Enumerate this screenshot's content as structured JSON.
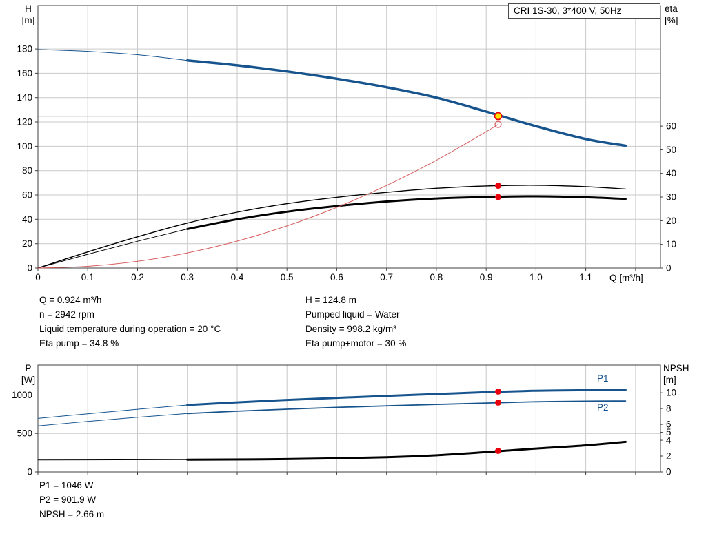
{
  "info": {
    "left": [
      "Q = 0.924 m³/h",
      "n = 2942 rpm",
      "Liquid temperature during operation = 20 °C",
      "Eta pump = 34.8 %"
    ],
    "right": [
      "H = 124.8 m",
      "Pumped liquid = Water",
      "Density = 998.2 kg/m³",
      "Eta pump+motor = 30 %"
    ]
  },
  "results": [
    "P1 = 1046 W",
    "P2 = 901.9 W",
    "NPSH = 2.66 m"
  ],
  "colors": {
    "curve_blue": "#17548e",
    "curve_black": "#000000",
    "curve_red": "#d65c5c",
    "dot_red": "#e8000d",
    "dot_yellow": "#ffe400",
    "grid": "#c9c9c9",
    "frame": "#3f3f3f",
    "crosshair": "#3a3a3a"
  },
  "chart_data": [
    {
      "type": "line",
      "title": "CRI 1S-30, 3*400 V, 50Hz",
      "x_label": "Q [m³/h]",
      "y_left_label": [
        "H",
        "[m]"
      ],
      "y_right_label": [
        "eta",
        "[%]"
      ],
      "xlim": [
        0,
        1.25
      ],
      "x_ticks": [
        0,
        0.1,
        0.2,
        0.3,
        0.4,
        0.5,
        0.6,
        0.7,
        0.8,
        0.9,
        1.0,
        1.1
      ],
      "x_grid": [
        0.1,
        0.2,
        0.3,
        0.4,
        0.5,
        0.6,
        0.7,
        0.8,
        0.9,
        1.0,
        1.1,
        1.2
      ],
      "show_x_labels": true,
      "y_left_ticks": [
        0,
        20,
        40,
        60,
        80,
        100,
        120,
        140,
        160,
        180
      ],
      "y_left_lim": [
        0,
        215.7
      ],
      "y_right_ticks": [
        0,
        10,
        20,
        30,
        40,
        50,
        60
      ],
      "y_right_lim": [
        0,
        111
      ],
      "duty_point": {
        "Q": 0.924,
        "H": 124.8,
        "eta_pump": 34.8,
        "eta_pump_motor": 30
      },
      "crosshair": [
        0.924,
        124.8
      ],
      "series": [
        {
          "name": "head-curve-extension",
          "axis": "left",
          "color": "curve_blue",
          "width": 1,
          "points": [
            [
              0,
              179.5
            ],
            [
              0.1,
              178
            ],
            [
              0.2,
              175.2
            ],
            [
              0.3,
              170.6
            ]
          ]
        },
        {
          "name": "head-curve",
          "axis": "left",
          "color": "curve_blue",
          "width": 3.5,
          "points": [
            [
              0.3,
              170.6
            ],
            [
              0.4,
              166.5
            ],
            [
              0.5,
              161.5
            ],
            [
              0.6,
              155.5
            ],
            [
              0.7,
              148.5
            ],
            [
              0.8,
              140
            ],
            [
              0.9,
              128.5
            ],
            [
              1.0,
              116.5
            ],
            [
              1.1,
              106
            ],
            [
              1.18,
              100.5
            ]
          ]
        },
        {
          "name": "eta-pump-curve",
          "axis": "right",
          "color": "curve_black",
          "width": 1.4,
          "points": [
            [
              0,
              0
            ],
            [
              0.1,
              6.8
            ],
            [
              0.2,
              13.2
            ],
            [
              0.3,
              19
            ],
            [
              0.4,
              23.6
            ],
            [
              0.5,
              27.2
            ],
            [
              0.6,
              29.9
            ],
            [
              0.7,
              32
            ],
            [
              0.8,
              33.7
            ],
            [
              0.9,
              34.7
            ],
            [
              1.0,
              35
            ],
            [
              1.1,
              34.4
            ],
            [
              1.18,
              33.4
            ]
          ]
        },
        {
          "name": "eta-pump-motor-extension",
          "axis": "right",
          "color": "curve_black",
          "width": 1,
          "points": [
            [
              0,
              0
            ],
            [
              0.1,
              5.8
            ],
            [
              0.2,
              11.3
            ],
            [
              0.3,
              16.5
            ]
          ]
        },
        {
          "name": "eta-pump-motor-curve",
          "axis": "right",
          "color": "curve_black",
          "width": 3,
          "points": [
            [
              0.3,
              16.5
            ],
            [
              0.4,
              20.6
            ],
            [
              0.5,
              23.8
            ],
            [
              0.6,
              26.2
            ],
            [
              0.7,
              28.1
            ],
            [
              0.8,
              29.4
            ],
            [
              0.9,
              30
            ],
            [
              1.0,
              30.3
            ],
            [
              1.1,
              29.9
            ],
            [
              1.18,
              29.2
            ]
          ]
        },
        {
          "name": "similar-duty-curve",
          "axis": "left",
          "color": "curve_red",
          "width": 1,
          "points": [
            [
              0,
              0
            ],
            [
              0.1,
              1.4
            ],
            [
              0.2,
              5.5
            ],
            [
              0.3,
              12.4
            ],
            [
              0.4,
              22.1
            ],
            [
              0.5,
              34.6
            ],
            [
              0.6,
              49.8
            ],
            [
              0.7,
              67.8
            ],
            [
              0.8,
              88.5
            ],
            [
              0.9,
              112
            ],
            [
              0.924,
              118
            ]
          ]
        }
      ],
      "markers": [
        {
          "x": 0.924,
          "y": 118,
          "axis": "left",
          "style": "open"
        },
        {
          "x": 0.924,
          "y": 34.8,
          "axis": "right",
          "style": "red"
        },
        {
          "x": 0.924,
          "y": 30,
          "axis": "right",
          "style": "red"
        },
        {
          "x": 0.924,
          "y": 124.8,
          "axis": "left",
          "style": "yellow"
        }
      ]
    },
    {
      "type": "line",
      "y_left_label": [
        "P",
        "[W]"
      ],
      "y_right_label": [
        "NPSH",
        "[m]"
      ],
      "series_labels": [
        "P1",
        "P2"
      ],
      "xlim": [
        0,
        1.25
      ],
      "x_ticks": [
        0,
        0.1,
        0.2,
        0.3,
        0.4,
        0.5,
        0.6,
        0.7,
        0.8,
        0.9,
        1.0,
        1.1
      ],
      "x_grid": [
        0.1,
        0.2,
        0.3,
        0.4,
        0.5,
        0.6,
        0.7,
        0.8,
        0.9,
        1.0,
        1.1,
        1.2
      ],
      "show_x_labels": false,
      "y_left_ticks": [
        0,
        500,
        1000
      ],
      "y_left_lim": [
        0,
        1390
      ],
      "y_right_ticks": [
        0,
        2,
        4,
        5,
        6,
        8,
        10
      ],
      "y_right_lim": [
        0,
        13.5
      ],
      "duty_point": {
        "Q": 0.924,
        "P1": 1046,
        "P2": 901.9,
        "NPSH": 2.66
      },
      "series": [
        {
          "name": "p1-extension",
          "axis": "left",
          "color": "curve_blue",
          "width": 1,
          "points": [
            [
              0,
              696
            ],
            [
              0.1,
              756
            ],
            [
              0.2,
              815
            ],
            [
              0.3,
              870
            ]
          ]
        },
        {
          "name": "p1-curve",
          "axis": "left",
          "color": "curve_blue",
          "width": 3,
          "points": [
            [
              0.3,
              870
            ],
            [
              0.4,
              905
            ],
            [
              0.5,
              936
            ],
            [
              0.6,
              963
            ],
            [
              0.7,
              989
            ],
            [
              0.8,
              1013
            ],
            [
              0.9,
              1038
            ],
            [
              1.0,
              1056
            ],
            [
              1.1,
              1064
            ],
            [
              1.18,
              1066
            ]
          ]
        },
        {
          "name": "p2-extension",
          "axis": "left",
          "color": "curve_blue",
          "width": 1,
          "points": [
            [
              0,
              598
            ],
            [
              0.1,
              656
            ],
            [
              0.2,
              710
            ],
            [
              0.3,
              760
            ]
          ]
        },
        {
          "name": "p2-curve",
          "axis": "left",
          "color": "curve_blue",
          "width": 1.8,
          "points": [
            [
              0.3,
              760
            ],
            [
              0.4,
              790
            ],
            [
              0.5,
              816
            ],
            [
              0.6,
              839
            ],
            [
              0.7,
              859
            ],
            [
              0.8,
              878
            ],
            [
              0.9,
              896
            ],
            [
              1.0,
              912
            ],
            [
              1.1,
              920
            ],
            [
              1.18,
              923
            ]
          ]
        },
        {
          "name": "npsh-extension",
          "axis": "right",
          "color": "curve_black",
          "width": 1,
          "points": [
            [
              0,
              1.5
            ],
            [
              0.3,
              1.55
            ]
          ]
        },
        {
          "name": "npsh-curve",
          "axis": "right",
          "color": "curve_black",
          "width": 3,
          "points": [
            [
              0.3,
              1.55
            ],
            [
              0.5,
              1.62
            ],
            [
              0.7,
              1.85
            ],
            [
              0.8,
              2.1
            ],
            [
              0.9,
              2.5
            ],
            [
              1.0,
              2.95
            ],
            [
              1.1,
              3.35
            ],
            [
              1.18,
              3.8
            ]
          ]
        }
      ],
      "markers": [
        {
          "x": 0.924,
          "y": 1046,
          "axis": "left",
          "style": "red"
        },
        {
          "x": 0.924,
          "y": 902,
          "axis": "left",
          "style": "red"
        },
        {
          "x": 0.924,
          "y": 2.66,
          "axis": "right",
          "style": "red"
        }
      ]
    }
  ]
}
